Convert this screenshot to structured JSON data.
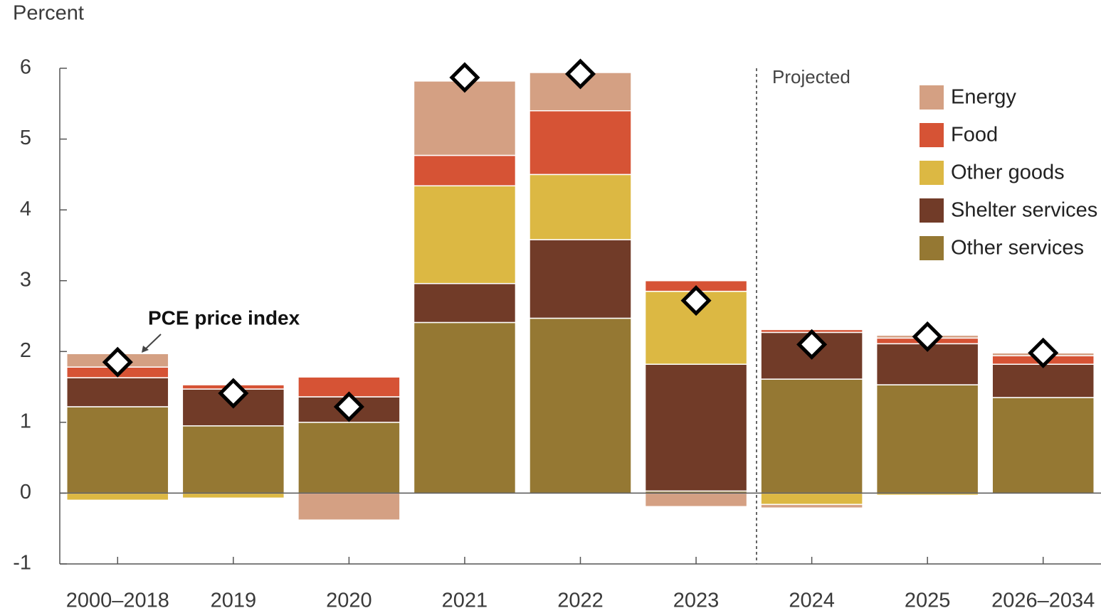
{
  "chart_data": {
    "type": "stacked_bar",
    "y_axis_label": "Percent",
    "annotations": [
      "Projected"
    ],
    "categories": [
      "2000–2018",
      "2019",
      "2020",
      "2021",
      "2022",
      "2023",
      "2024",
      "2025",
      "2026–2034"
    ],
    "series": [
      {
        "name": "Other services",
        "color": "#957833",
        "values": [
          1.22,
          0.95,
          1.0,
          2.41,
          2.47,
          0.03,
          1.61,
          1.53,
          1.35
        ]
      },
      {
        "name": "Shelter services",
        "color": "#713b28",
        "values": [
          0.41,
          0.52,
          0.36,
          0.55,
          1.11,
          1.79,
          0.66,
          0.58,
          0.47
        ]
      },
      {
        "name": "Other goods",
        "color": "#dcb843",
        "values": [
          -0.1,
          -0.07,
          0,
          1.38,
          0.92,
          1.03,
          -0.16,
          -0.03,
          0
        ]
      },
      {
        "name": "Food",
        "color": "#d65335",
        "values": [
          0.15,
          0.06,
          0.28,
          0.43,
          0.9,
          0.15,
          0.04,
          0.08,
          0.12
        ]
      },
      {
        "name": "Energy",
        "color": "#d4a083",
        "values": [
          0.19,
          0,
          -0.38,
          1.05,
          0.54,
          -0.19,
          -0.05,
          0.04,
          0.04
        ]
      }
    ],
    "markers": {
      "name": "PCE price index",
      "values": [
        1.85,
        1.41,
        1.22,
        5.87,
        5.92,
        2.72,
        2.1,
        2.21,
        1.98
      ]
    },
    "ylim": [
      -1,
      6
    ],
    "yticks": [
      -1,
      0,
      1,
      2,
      3,
      4,
      5,
      6
    ],
    "legend": "top-right"
  }
}
